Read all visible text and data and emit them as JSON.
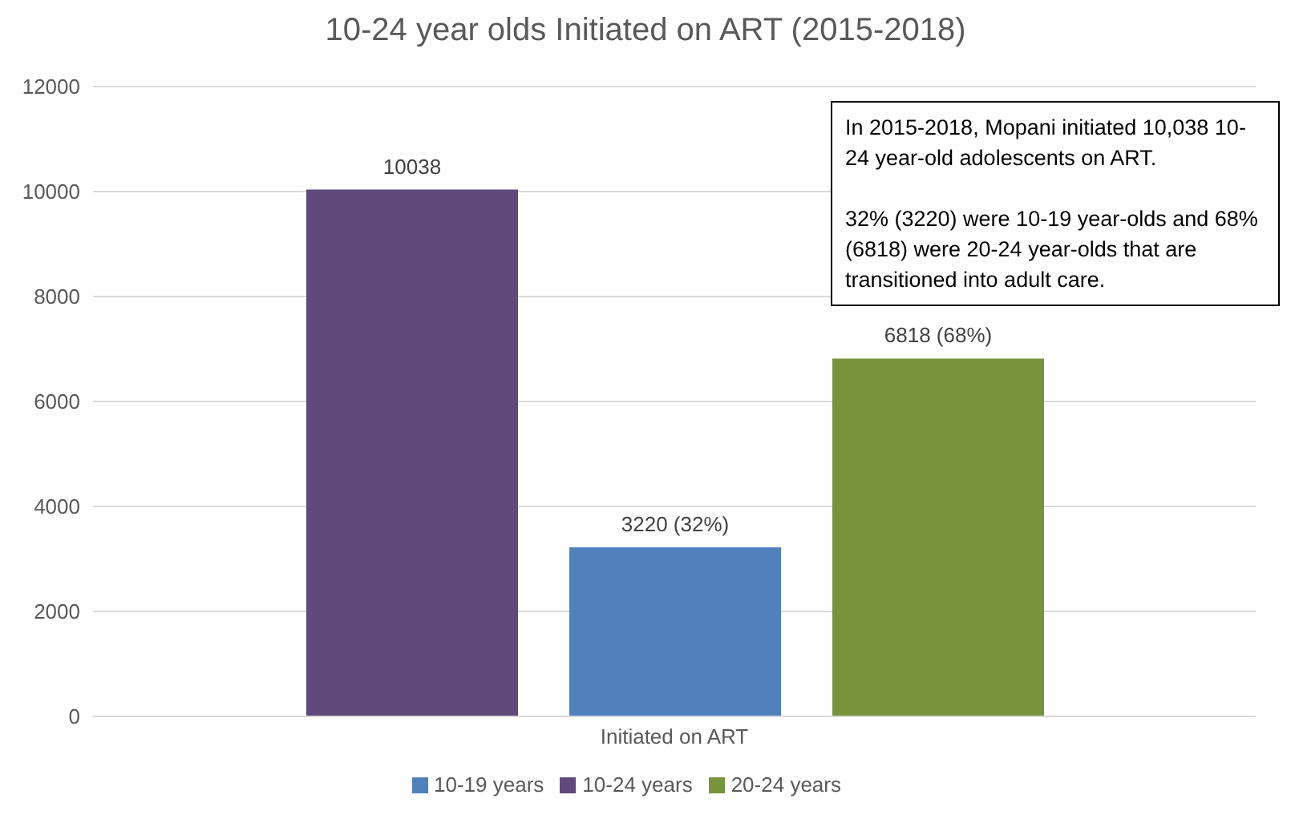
{
  "chart_data": {
    "type": "bar",
    "title": "10-24 year olds Initiated on ART (2015-2018)",
    "categories": [
      "Initiated on ART"
    ],
    "series": [
      {
        "name": "10-24 years",
        "color": "#604a7b",
        "values": [
          10038
        ],
        "value_labels": [
          "10038"
        ]
      },
      {
        "name": "10-19 years",
        "color": "#4f81bd",
        "values": [
          3220
        ],
        "value_labels": [
          "3220 (32%)"
        ]
      },
      {
        "name": "20-24 years",
        "color": "#77933c",
        "values": [
          6818
        ],
        "value_labels": [
          "6818 (68%)"
        ]
      }
    ],
    "ylim": [
      0,
      12000
    ],
    "yticks": [
      0,
      2000,
      4000,
      6000,
      8000,
      10000,
      12000
    ],
    "grid": "y",
    "legend": "bottom",
    "annotations": [
      "In 2015-2018, Mopani initiated 10,038 10-24 year-old adolescents on ART.",
      "32% (3220) were 10-19 year-olds and 68% (6818) were 20-24 year-olds that are transitioned into adult care."
    ]
  }
}
